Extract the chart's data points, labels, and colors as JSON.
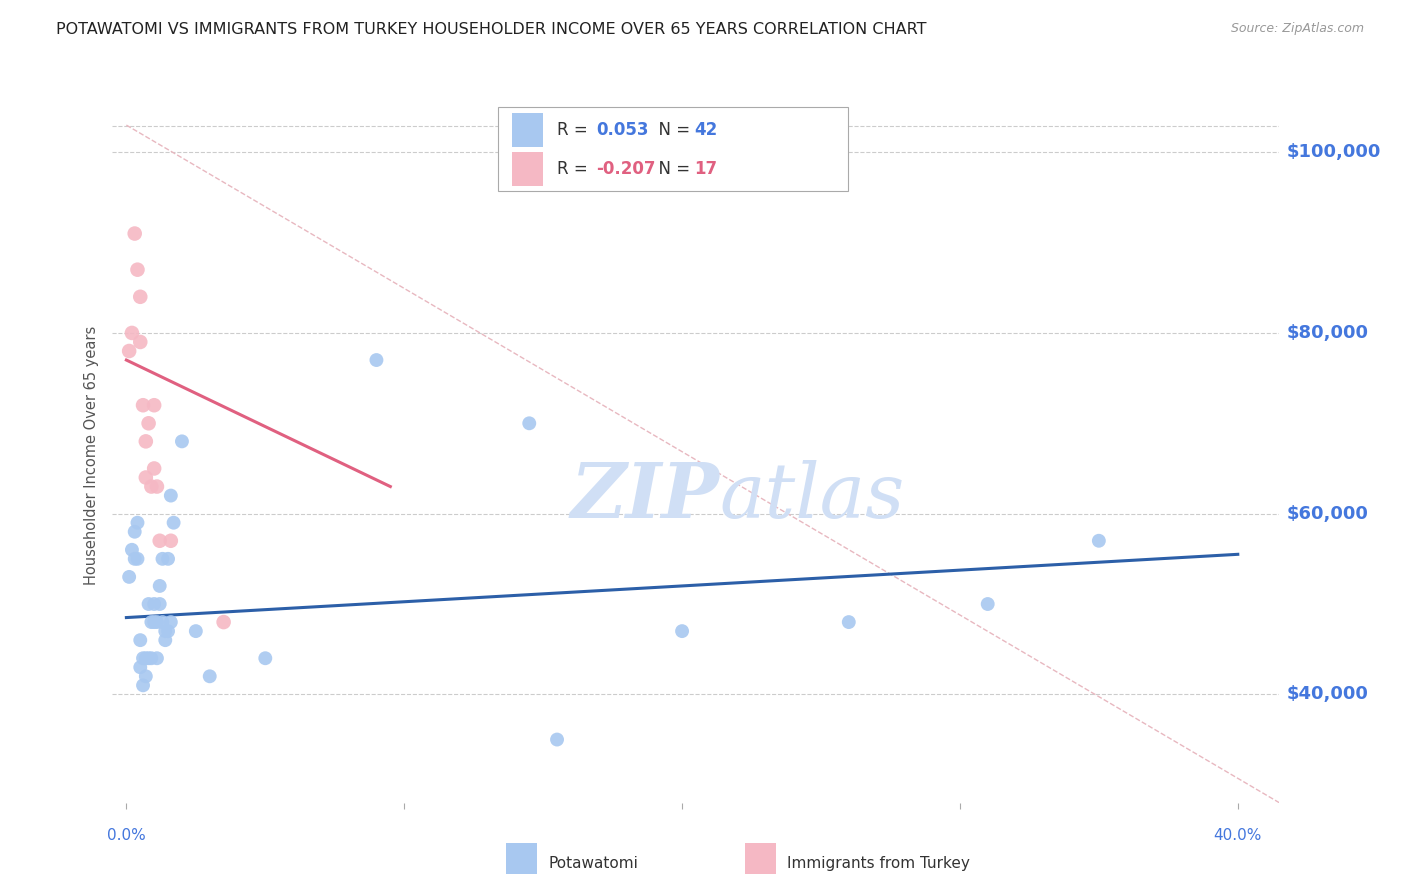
{
  "title": "POTAWATOMI VS IMMIGRANTS FROM TURKEY HOUSEHOLDER INCOME OVER 65 YEARS CORRELATION CHART",
  "source": "Source: ZipAtlas.com",
  "ylabel": "Householder Income Over 65 years",
  "ytick_labels": [
    "$40,000",
    "$60,000",
    "$80,000",
    "$100,000"
  ],
  "ytick_values": [
    40000,
    60000,
    80000,
    100000
  ],
  "ymin": 28000,
  "ymax": 105000,
  "xmin": -0.005,
  "xmax": 0.415,
  "blue_scatter_x": [
    0.001,
    0.002,
    0.003,
    0.003,
    0.004,
    0.004,
    0.005,
    0.005,
    0.006,
    0.006,
    0.007,
    0.007,
    0.008,
    0.008,
    0.009,
    0.009,
    0.01,
    0.01,
    0.011,
    0.011,
    0.012,
    0.012,
    0.013,
    0.013,
    0.014,
    0.014,
    0.015,
    0.015,
    0.016,
    0.016,
    0.017,
    0.02,
    0.025,
    0.03,
    0.05,
    0.09,
    0.145,
    0.155,
    0.2,
    0.26,
    0.31,
    0.35
  ],
  "blue_scatter_y": [
    53000,
    56000,
    55000,
    58000,
    55000,
    59000,
    46000,
    43000,
    41000,
    44000,
    42000,
    44000,
    50000,
    44000,
    44000,
    48000,
    48000,
    50000,
    44000,
    48000,
    50000,
    52000,
    55000,
    48000,
    46000,
    47000,
    55000,
    47000,
    48000,
    62000,
    59000,
    68000,
    47000,
    42000,
    44000,
    77000,
    70000,
    35000,
    47000,
    48000,
    50000,
    57000
  ],
  "pink_scatter_x": [
    0.001,
    0.002,
    0.003,
    0.004,
    0.005,
    0.005,
    0.006,
    0.007,
    0.007,
    0.008,
    0.009,
    0.01,
    0.01,
    0.011,
    0.012,
    0.016,
    0.035
  ],
  "pink_scatter_y": [
    78000,
    80000,
    91000,
    87000,
    84000,
    79000,
    72000,
    64000,
    68000,
    70000,
    63000,
    65000,
    72000,
    63000,
    57000,
    57000,
    48000
  ],
  "blue_line_x": [
    0.0,
    0.4
  ],
  "blue_line_y": [
    48500,
    55500
  ],
  "pink_line_x": [
    0.0,
    0.095
  ],
  "pink_line_y": [
    77000,
    63000
  ],
  "diag_line_x": [
    0.0,
    0.415
  ],
  "diag_line_y": [
    103000,
    28000
  ],
  "blue_color": "#a8c8f0",
  "pink_color": "#f5b8c4",
  "blue_line_color": "#2c5fa8",
  "pink_line_color": "#e06080",
  "diag_line_color": "#e8b8c0",
  "title_color": "#222222",
  "axis_label_color": "#4477dd",
  "ytick_color": "#4477dd",
  "grid_color": "#cccccc",
  "watermark_color": "#d0dff5",
  "background_color": "#ffffff",
  "title_fontsize": 11.5,
  "scatter_size": 100,
  "legend_blue_r": "0.053",
  "legend_blue_n": "42",
  "legend_pink_r": "-0.207",
  "legend_pink_n": "17",
  "bottom_label_blue": "Potawatomi",
  "bottom_label_pink": "Immigrants from Turkey"
}
